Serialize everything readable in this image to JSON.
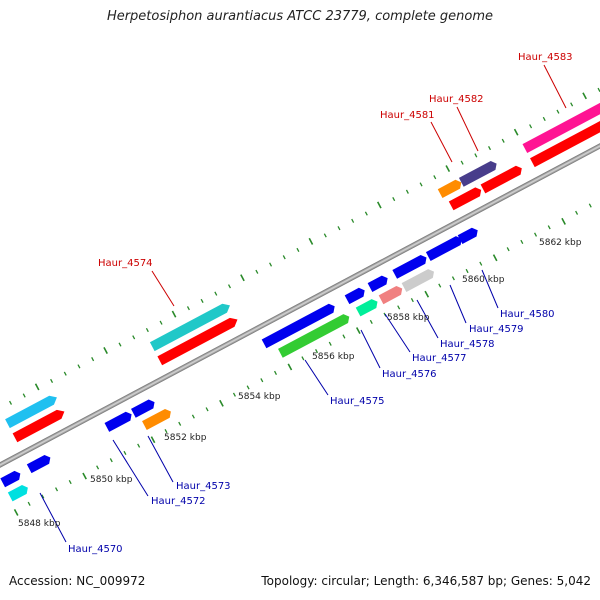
{
  "title": "Herpetosiphon aurantiacus ATCC 23779, complete genome",
  "footer": {
    "accession": "Accession: NC_009972",
    "topology": "Topology: circular; Length: 6,346,587 bp; Genes: 5,042"
  },
  "colors": {
    "backbone": "#8a8a8a",
    "tick": "#2a8a2a",
    "label_top": "#cc0000",
    "label_bottom": "#0000aa"
  },
  "scale_labels": [
    "5848 kbp",
    "5850 kbp",
    "5852 kbp",
    "5854 kbp",
    "5856 kbp",
    "5858 kbp",
    "5860 kbp",
    "5862 kbp"
  ],
  "genes": [
    {
      "name": "Haur_4570",
      "color": "#0000ee"
    },
    {
      "name": "Haur_4572",
      "color": "#0000ee"
    },
    {
      "name": "Haur_4573",
      "color": "#ff8c00"
    },
    {
      "name": "Haur_4574",
      "color": "#20c8c8"
    },
    {
      "name": "Haur_4575",
      "color": "#33cc33"
    },
    {
      "name": "Haur_4576",
      "color": "#00ee99"
    },
    {
      "name": "Haur_4577",
      "color": "#f08080"
    },
    {
      "name": "Haur_4578",
      "color": "#cccccc"
    },
    {
      "name": "Haur_4579",
      "color": "#0000ee"
    },
    {
      "name": "Haur_4580",
      "color": "#0000ee"
    },
    {
      "name": "Haur_4581",
      "color": "#ff8c00"
    },
    {
      "name": "Haur_4582",
      "color": "#483d8b"
    },
    {
      "name": "Haur_4583",
      "color": "#ff1493"
    }
  ]
}
